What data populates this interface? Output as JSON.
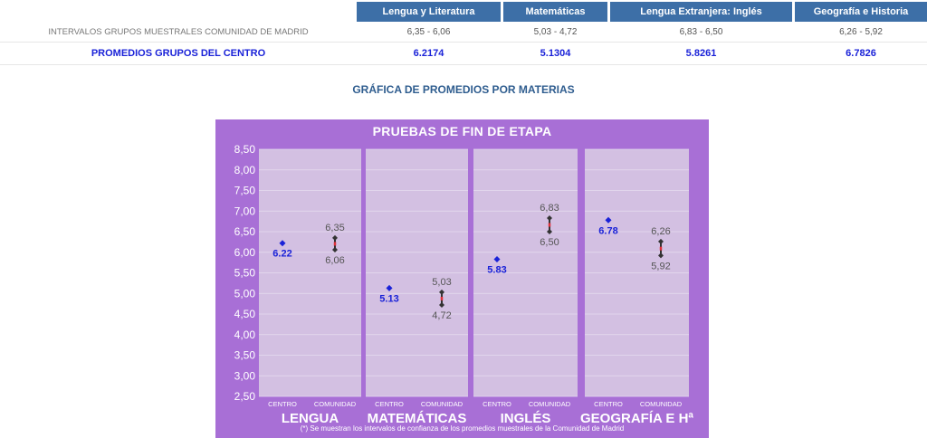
{
  "table": {
    "headers": [
      "Lengua y Literatura",
      "Matemáticas",
      "Lengua Extranjera: Inglés",
      "Geografía e Historia"
    ],
    "row_intervals": {
      "label": "INTERVALOS GRUPOS MUESTRALES COMUNIDAD DE MADRID",
      "values": [
        "6,35 - 6,06",
        "5,03 - 4,72",
        "6,83 - 6,50",
        "6,26 - 5,92"
      ]
    },
    "row_averages": {
      "label": "PROMEDIOS GRUPOS DEL CENTRO",
      "values": [
        "6.2174",
        "5.1304",
        "5.8261",
        "6.7826"
      ]
    }
  },
  "section_title": "GRÁFICA DE PROMEDIOS POR MATERIAS",
  "chart_data": {
    "type": "scatter",
    "title": "PRUEBAS DE FIN DE ETAPA",
    "footnote": "(*) Se muestran los intervalos de confianza de los promedios muestrales de la Comunidad de Madrid",
    "ylim": [
      2.5,
      8.5
    ],
    "yticks": [
      "8,50",
      "8,00",
      "7,50",
      "7,00",
      "6,50",
      "6,00",
      "5,50",
      "5,00",
      "4,50",
      "4,00",
      "3,50",
      "3,00",
      "2,50"
    ],
    "sub_labels": [
      "CENTRO",
      "COMUNIDAD"
    ],
    "colors": {
      "background": "#a86fd6",
      "panel": "#d3c0e2",
      "centro": "#1a22d8",
      "interval": "#333333"
    },
    "groups": [
      {
        "name": "LENGUA",
        "centro": 6.22,
        "centro_label": "6.22",
        "comunidad_high": 6.35,
        "comunidad_low": 6.06,
        "high_label": "6,35",
        "low_label": "6,06"
      },
      {
        "name": "MATEMÁTICAS",
        "centro": 5.13,
        "centro_label": "5.13",
        "comunidad_high": 5.03,
        "comunidad_low": 4.72,
        "high_label": "5,03",
        "low_label": "4,72"
      },
      {
        "name": "INGLÉS",
        "centro": 5.83,
        "centro_label": "5.83",
        "comunidad_high": 6.83,
        "comunidad_low": 6.5,
        "high_label": "6,83",
        "low_label": "6,50"
      },
      {
        "name": "GEOGRAFÍA E Hª",
        "centro": 6.78,
        "centro_label": "6.78",
        "comunidad_high": 6.26,
        "comunidad_low": 5.92,
        "high_label": "6,26",
        "low_label": "5,92"
      }
    ]
  }
}
